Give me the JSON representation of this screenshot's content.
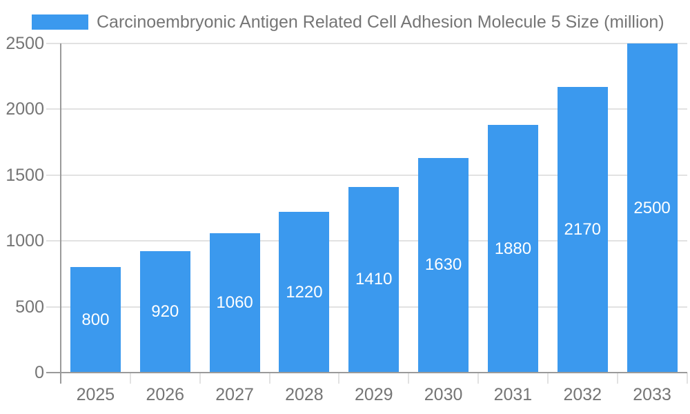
{
  "chart_data": {
    "type": "bar",
    "title": "Carcinoembryonic Antigen Related Cell Adhesion Molecule 5 Size (million)",
    "categories": [
      "2025",
      "2026",
      "2027",
      "2028",
      "2029",
      "2030",
      "2031",
      "2032",
      "2033"
    ],
    "values": [
      800,
      920,
      1060,
      1220,
      1410,
      1630,
      1880,
      2170,
      2500
    ],
    "xlabel": "",
    "ylabel": "",
    "ylim": [
      0,
      2500
    ],
    "y_ticks": [
      0,
      500,
      1000,
      1500,
      2000,
      2500
    ],
    "y_tick_labels": [
      "0",
      "500",
      "1000",
      "1500",
      "2000",
      "2500"
    ],
    "grid": true,
    "legend_position": "top-left",
    "value_label_position": "inside-center",
    "colors": {
      "bar": "#3b99ee",
      "value_label_text": "#ffffff",
      "axis_line": "#9a9a9a",
      "gridline": "#e2e2e2",
      "tick_text": "#757575",
      "title_text": "#757575",
      "background": "#ffffff"
    }
  }
}
